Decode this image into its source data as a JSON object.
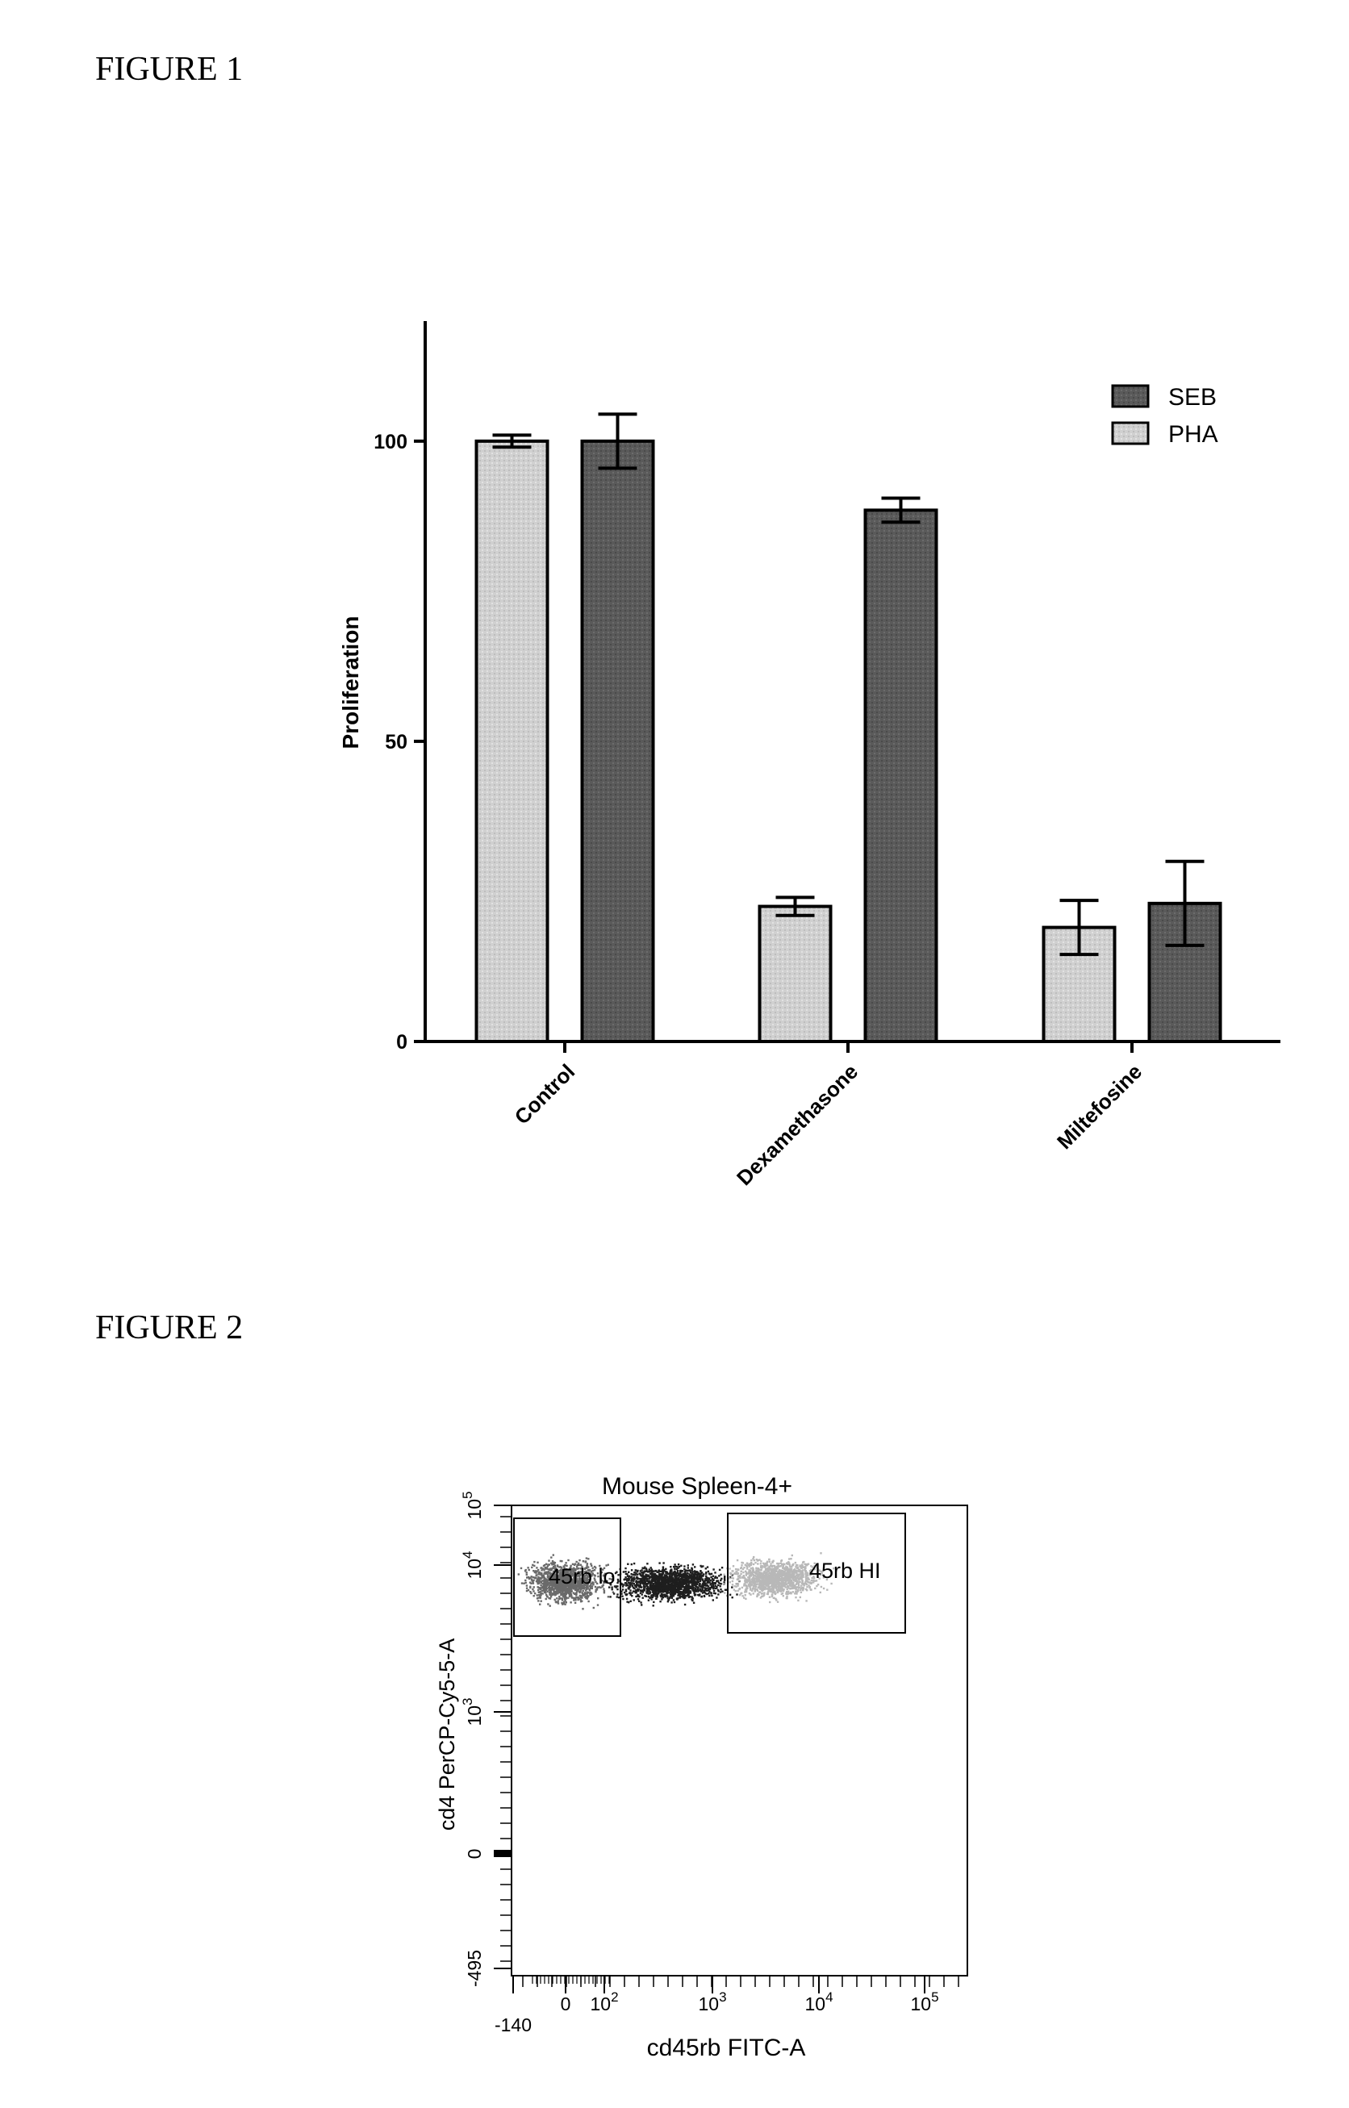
{
  "figure1_label": "FIGURE 1",
  "figure2_label": "FIGURE 2",
  "colors": {
    "SEB": "#555555",
    "PHA": "#cccccc",
    "axis": "#000000"
  },
  "chart_data": [
    {
      "type": "bar",
      "title": "",
      "xlabel": "",
      "ylabel": "Proliferation",
      "ylim": [
        0,
        120
      ],
      "yticks": [
        0,
        50,
        100
      ],
      "categories": [
        "Control",
        "Dexamethasone",
        "Miltefosine"
      ],
      "legend": {
        "placement": "top-right",
        "entries": [
          "SEB",
          "PHA"
        ]
      },
      "series": [
        {
          "name": "PHA",
          "values": [
            100,
            22.5,
            19
          ],
          "errors": [
            1,
            1.5,
            4.5
          ]
        },
        {
          "name": "SEB",
          "values": [
            100,
            88.5,
            23
          ],
          "errors": [
            4.5,
            2,
            7
          ]
        }
      ]
    },
    {
      "type": "scatter",
      "title": "Mouse Spleen-4+",
      "xlabel": "cd45rb FITC-A",
      "ylabel": "cd4 PerCP-Cy5-5-A",
      "xscale": "biexponential",
      "yscale": "biexponential",
      "xtick_labels": [
        "-140",
        "0",
        "10^2",
        "10^3",
        "10^4",
        "10^5"
      ],
      "ytick_labels": [
        "-495",
        "0",
        "10^3",
        "10^4",
        "10^5"
      ],
      "gates": [
        {
          "name": "45rb lo"
        },
        {
          "name": "45rb HI"
        }
      ]
    }
  ]
}
